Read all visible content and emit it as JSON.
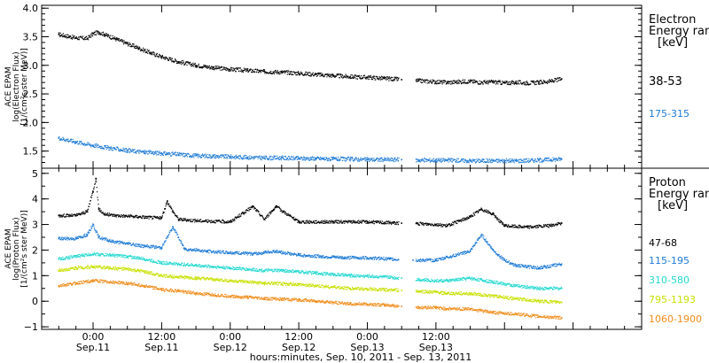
{
  "chart_data": [
    {
      "type": "scatter",
      "ylabel_lines": [
        "ACE EPAM",
        "log(Electron Flux)",
        "[1/(cm²s ster MeV)]"
      ],
      "ylim": [
        1.2,
        4.05
      ],
      "yticks": [
        "4.0",
        "3.5",
        "3.0",
        "2.5",
        "2.0",
        "1.5"
      ],
      "yticks_values": [
        4.0,
        3.5,
        3.0,
        2.5,
        2.0,
        1.5
      ],
      "legend_title": [
        "Electron",
        "Energy ran",
        "[keV]"
      ],
      "series": [
        {
          "name": "38-53",
          "color": "#000000",
          "x": [
            -6,
            -3,
            -1,
            0,
            1,
            2,
            4,
            6,
            8,
            10,
            12,
            15,
            18,
            21,
            24,
            27,
            30,
            33,
            36,
            39,
            42,
            45,
            48,
            51,
            54,
            57,
            60,
            62,
            66,
            68,
            70,
            72,
            74,
            76,
            78,
            80,
            82
          ],
          "y": [
            3.54,
            3.48,
            3.47,
            3.55,
            3.58,
            3.54,
            3.46,
            3.38,
            3.3,
            3.22,
            3.15,
            3.06,
            3.0,
            2.96,
            2.93,
            2.91,
            2.89,
            2.88,
            2.86,
            2.84,
            2.82,
            2.8,
            2.79,
            2.77,
            2.75,
            2.73,
            2.71,
            2.7,
            2.72,
            2.7,
            2.71,
            2.69,
            2.7,
            2.69,
            2.7,
            2.72,
            2.76
          ]
        },
        {
          "name": "175-315",
          "color": "#1e7bd6",
          "x": [
            -6,
            -3,
            0,
            3,
            6,
            9,
            12,
            15,
            18,
            21,
            24,
            27,
            30,
            33,
            36,
            39,
            42,
            45,
            48,
            51,
            54,
            57,
            60,
            62,
            66,
            70,
            74,
            78,
            82
          ],
          "y": [
            1.73,
            1.66,
            1.6,
            1.55,
            1.51,
            1.48,
            1.46,
            1.44,
            1.42,
            1.41,
            1.4,
            1.39,
            1.38,
            1.38,
            1.37,
            1.37,
            1.36,
            1.36,
            1.35,
            1.35,
            1.35,
            1.34,
            1.34,
            1.34,
            1.33,
            1.33,
            1.33,
            1.34,
            1.36
          ]
        }
      ]
    },
    {
      "type": "scatter",
      "ylabel_lines": [
        "ACE EPAM",
        "log(Proton Flux)",
        "[1/(cm²s ster MeV)]"
      ],
      "ylim": [
        -1.1,
        5.2
      ],
      "yticks": [
        "5",
        "4",
        "3",
        "2",
        "1",
        "0",
        "−1"
      ],
      "yticks_values": [
        5,
        4,
        3,
        2,
        1,
        0,
        -1
      ],
      "legend_title": [
        "Proton",
        "Energy ran",
        "[keV]"
      ],
      "series": [
        {
          "name": "47-68",
          "color": "#000000",
          "x": [
            -6,
            -3,
            -1,
            0,
            0.5,
            1,
            2,
            4,
            8,
            12,
            13,
            14,
            15,
            18,
            24,
            28,
            30,
            32,
            36,
            42,
            48,
            54,
            60,
            62,
            66,
            68,
            70,
            72,
            76,
            80,
            82
          ],
          "y": [
            3.35,
            3.35,
            3.5,
            4.3,
            4.8,
            3.6,
            3.4,
            3.35,
            3.3,
            3.25,
            3.9,
            3.5,
            3.2,
            3.15,
            3.1,
            3.7,
            3.2,
            3.7,
            3.1,
            3.1,
            3.1,
            3.05,
            3.0,
            2.95,
            3.3,
            3.6,
            3.4,
            2.95,
            2.9,
            2.95,
            3.05
          ]
        },
        {
          "name": "115-195",
          "color": "#1e7bd6",
          "x": [
            -6,
            -3,
            -1,
            0,
            1,
            3,
            6,
            9,
            12,
            14,
            16,
            20,
            24,
            28,
            32,
            36,
            40,
            44,
            48,
            52,
            56,
            60,
            66,
            68,
            70,
            72,
            74,
            78,
            82
          ],
          "y": [
            2.45,
            2.45,
            2.6,
            3.0,
            2.5,
            2.35,
            2.25,
            2.15,
            2.1,
            2.9,
            2.05,
            1.95,
            1.9,
            1.85,
            1.95,
            1.8,
            1.75,
            1.7,
            1.7,
            1.65,
            1.6,
            1.6,
            1.95,
            2.6,
            2.0,
            1.6,
            1.4,
            1.3,
            1.45
          ]
        },
        {
          "name": "310-580",
          "color": "#22d8d0",
          "x": [
            -6,
            -3,
            0,
            3,
            6,
            9,
            12,
            15,
            18,
            21,
            24,
            27,
            30,
            33,
            36,
            39,
            42,
            45,
            48,
            51,
            54,
            57,
            60,
            62,
            66,
            70,
            74,
            78,
            82
          ],
          "y": [
            1.65,
            1.75,
            1.85,
            1.8,
            1.75,
            1.65,
            1.5,
            1.45,
            1.4,
            1.35,
            1.3,
            1.25,
            1.2,
            1.2,
            1.15,
            1.1,
            1.05,
            1.0,
            0.98,
            0.95,
            0.9,
            0.85,
            0.8,
            0.8,
            0.9,
            0.75,
            0.6,
            0.5,
            0.5
          ]
        },
        {
          "name": "795-1193",
          "color": "#c8e000",
          "x": [
            -6,
            -3,
            0,
            3,
            6,
            9,
            12,
            15,
            18,
            21,
            24,
            27,
            30,
            33,
            36,
            39,
            42,
            45,
            48,
            51,
            54,
            57,
            60,
            62,
            66,
            70,
            74,
            78,
            82
          ],
          "y": [
            1.2,
            1.3,
            1.35,
            1.3,
            1.25,
            1.15,
            1.0,
            0.95,
            0.9,
            0.85,
            0.8,
            0.75,
            0.7,
            0.68,
            0.65,
            0.6,
            0.55,
            0.5,
            0.48,
            0.45,
            0.42,
            0.38,
            0.35,
            0.3,
            0.3,
            0.2,
            0.1,
            0.0,
            -0.05
          ]
        },
        {
          "name": "1060-1900",
          "color": "#f08c1a",
          "x": [
            -6,
            -3,
            0,
            3,
            6,
            9,
            12,
            15,
            18,
            21,
            24,
            27,
            30,
            33,
            36,
            39,
            42,
            45,
            48,
            51,
            54,
            57,
            60,
            62,
            66,
            70,
            74,
            78,
            82
          ],
          "y": [
            0.6,
            0.7,
            0.8,
            0.75,
            0.7,
            0.6,
            0.45,
            0.4,
            0.3,
            0.25,
            0.2,
            0.15,
            0.1,
            0.08,
            0.05,
            0.0,
            -0.05,
            -0.1,
            -0.12,
            -0.15,
            -0.2,
            -0.25,
            -0.25,
            -0.3,
            -0.3,
            -0.45,
            -0.5,
            -0.6,
            -0.65
          ]
        }
      ]
    }
  ],
  "x_axis": {
    "range_hours": [
      -9,
      96
    ],
    "ticks": [
      {
        "hour": 0,
        "time": "0:00",
        "date": "Sep.11"
      },
      {
        "hour": 12,
        "time": "12:00",
        "date": "Sep.11"
      },
      {
        "hour": 24,
        "time": "0:00",
        "date": "Sep.12"
      },
      {
        "hour": 36,
        "time": "12:00",
        "date": "Sep.12"
      },
      {
        "hour": 48,
        "time": "0:00",
        "date": "Sep.13"
      },
      {
        "hour": 60,
        "time": "12:00",
        "date": "Sep.13"
      }
    ],
    "label": "hours:minutes, Sep. 10, 2011 - Sep. 13, 2011",
    "data_gap_hours": [
      53.5,
      56.5
    ]
  }
}
